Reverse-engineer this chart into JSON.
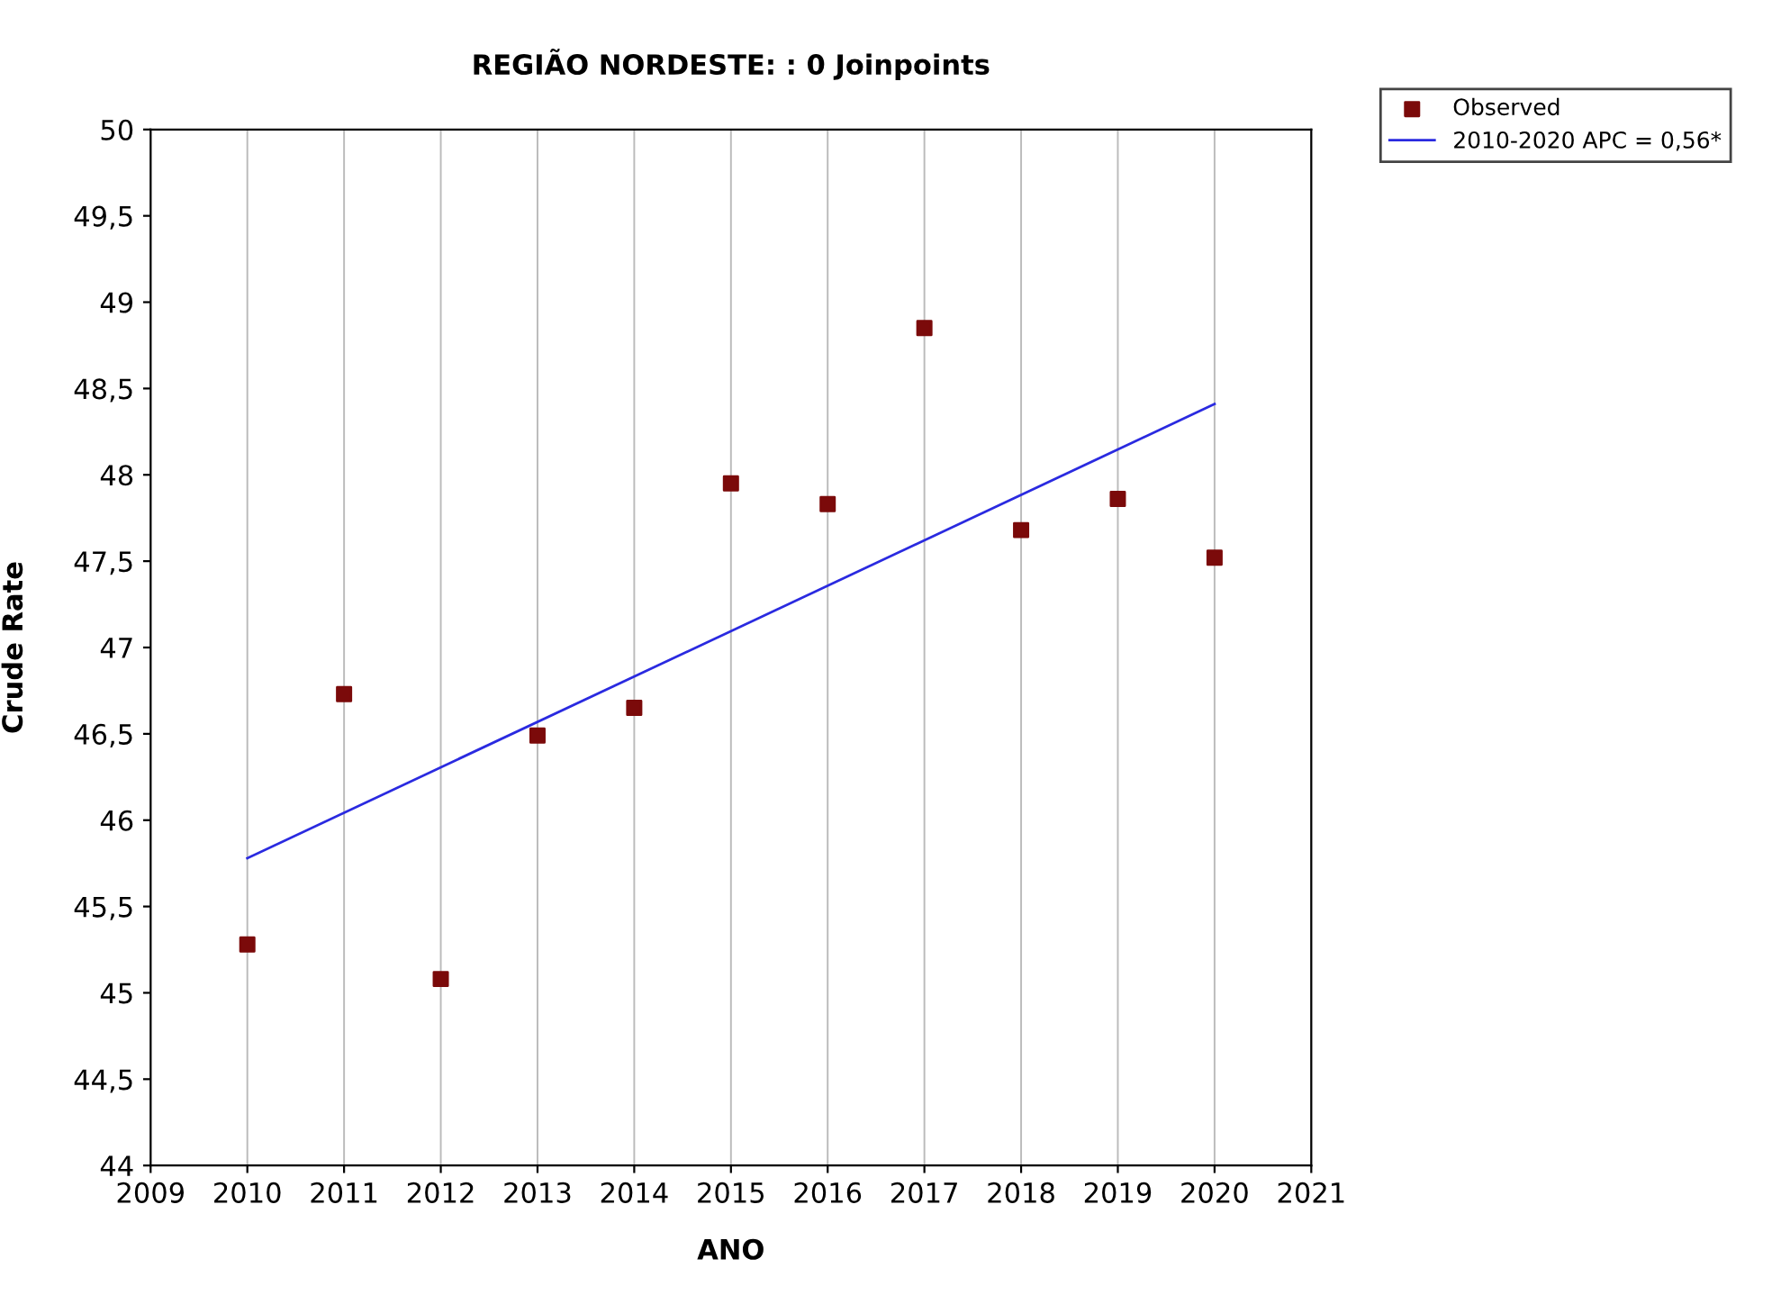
{
  "chart_data": {
    "type": "scatter",
    "title": "REGIÃO NORDESTE: : 0 Joinpoints",
    "xlabel": "ANO",
    "ylabel": "Crude Rate",
    "x": [
      2010,
      2011,
      2012,
      2013,
      2014,
      2015,
      2016,
      2017,
      2018,
      2019,
      2020
    ],
    "series": [
      {
        "name": "Observed",
        "color": "#7b0a0a",
        "marker": "square",
        "values": [
          45.28,
          46.73,
          45.08,
          46.49,
          46.65,
          47.95,
          47.83,
          48.85,
          47.68,
          47.86,
          47.52
        ]
      },
      {
        "name": "2010-2020 APC = 0,56*",
        "type": "line",
        "color": "#2a2ae0",
        "marker": "none",
        "x": [
          2010,
          2020
        ],
        "values": [
          45.78,
          48.41
        ]
      }
    ],
    "xlim": [
      2009,
      2021
    ],
    "xticks": [
      2009,
      2010,
      2011,
      2012,
      2013,
      2014,
      2015,
      2016,
      2017,
      2018,
      2019,
      2020,
      2021
    ],
    "ylim": [
      44,
      50
    ],
    "yticks": [
      {
        "value": 44,
        "label": "44"
      },
      {
        "value": 44.5,
        "label": "44,5"
      },
      {
        "value": 45,
        "label": "45"
      },
      {
        "value": 45.5,
        "label": "45,5"
      },
      {
        "value": 46,
        "label": "46"
      },
      {
        "value": 46.5,
        "label": "46,5"
      },
      {
        "value": 47,
        "label": "47"
      },
      {
        "value": 47.5,
        "label": "47,5"
      },
      {
        "value": 48,
        "label": "48"
      },
      {
        "value": 48.5,
        "label": "48,5"
      },
      {
        "value": 49,
        "label": "49"
      },
      {
        "value": 49.5,
        "label": "49,5"
      },
      {
        "value": 50,
        "label": "50"
      }
    ],
    "grid": "x",
    "legend": "top right"
  }
}
